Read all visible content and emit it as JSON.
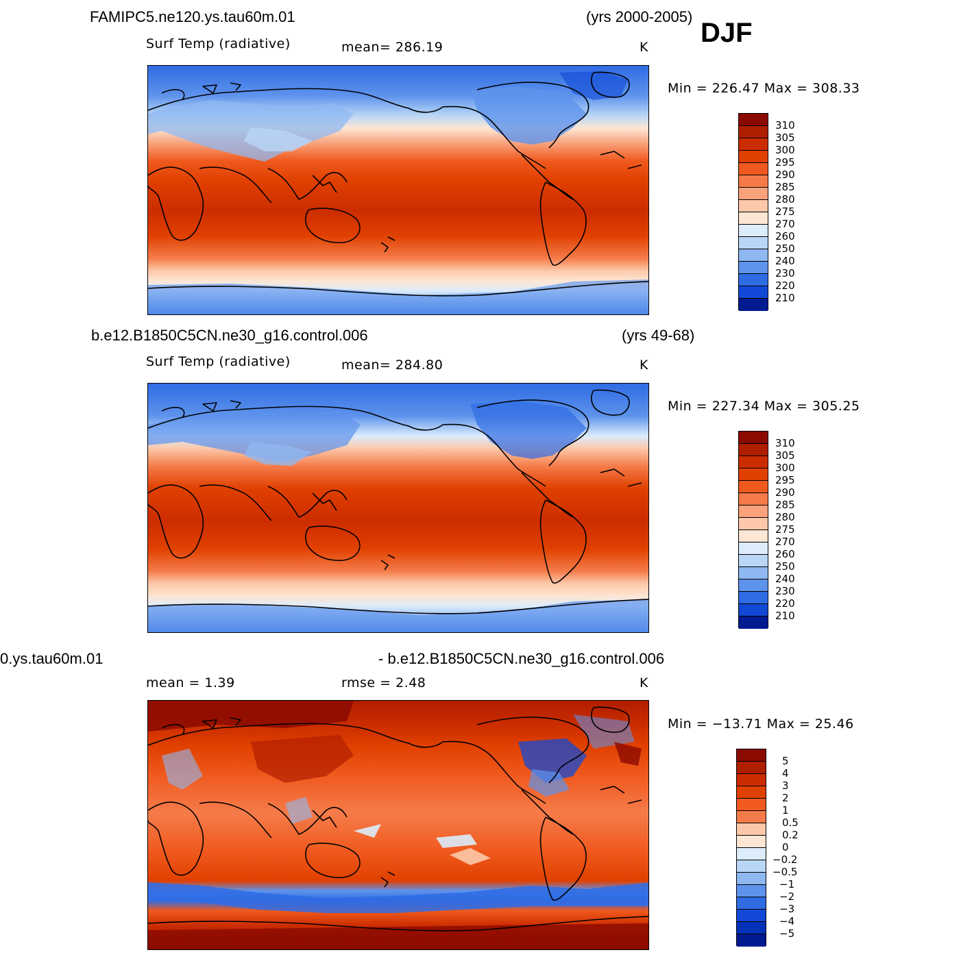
{
  "season": "DJF",
  "panels": [
    {
      "case": "FAMIPC5.ne120.ys.tau60m.01",
      "years": "(yrs 2000-2005)",
      "variable": "Surf Temp (radiative)",
      "stat": "mean=  286.19",
      "units": "K",
      "minmax": "Min  =  226.47  Max  =  308.33",
      "colorbar_labels": [
        "310",
        "305",
        "300",
        "295",
        "290",
        "285",
        "280",
        "275",
        "270",
        "260",
        "250",
        "240",
        "230",
        "220",
        "210"
      ],
      "colorbar_colors": [
        "#8b0a00",
        "#b01e00",
        "#cc2d00",
        "#e04000",
        "#f05a1e",
        "#f57c4a",
        "#f9a27c",
        "#fcc8a9",
        "#fde6d4",
        "#dcecfb",
        "#b9d6f6",
        "#8fb8f1",
        "#5e93ec",
        "#2f6ce4",
        "#1149d6",
        "#0532b8",
        "#001a90"
      ]
    },
    {
      "case": "b.e12.B1850C5CN.ne30_g16.control.006",
      "years": "(yrs 49-68)",
      "variable": "Surf Temp (radiative)",
      "stat": "mean=  284.80",
      "units": "K",
      "minmax": "Min  =  227.34  Max  =  305.25",
      "colorbar_labels": [
        "310",
        "305",
        "300",
        "295",
        "290",
        "285",
        "280",
        "275",
        "270",
        "260",
        "250",
        "240",
        "230",
        "220",
        "210"
      ],
      "colorbar_colors": [
        "#8b0a00",
        "#b01e00",
        "#cc2d00",
        "#e04000",
        "#f05a1e",
        "#f57c4a",
        "#f9a27c",
        "#fcc8a9",
        "#fde6d4",
        "#dcecfb",
        "#b9d6f6",
        "#8fb8f1",
        "#5e93ec",
        "#2f6ce4",
        "#1149d6",
        "#0532b8",
        "#001a90"
      ]
    },
    {
      "case_left": "0.ys.tau60m.01",
      "case_right": "- b.e12.B1850C5CN.ne30_g16.control.006",
      "stat_mean": "mean =     1.39",
      "stat_rmse": "rmse =     2.48",
      "units": "K",
      "minmax": "Min  =  −13.71  Max  =   25.46",
      "colorbar_labels": [
        "5",
        "4",
        "3",
        "2",
        "1",
        "0.5",
        "0.2",
        "0",
        "−0.2",
        "−0.5",
        "−1",
        "−2",
        "−3",
        "−4",
        "−5"
      ],
      "colorbar_colors": [
        "#8b0a00",
        "#b01e00",
        "#cc2d00",
        "#e04000",
        "#f05a1e",
        "#f57c4a",
        "#f9a27c",
        "#fcc8a9",
        "#fde6d4",
        "#dcecfb",
        "#b9d6f6",
        "#8fb8f1",
        "#5e93ec",
        "#2f6ce4",
        "#1149d6",
        "#0532b8",
        "#001a90"
      ]
    }
  ]
}
